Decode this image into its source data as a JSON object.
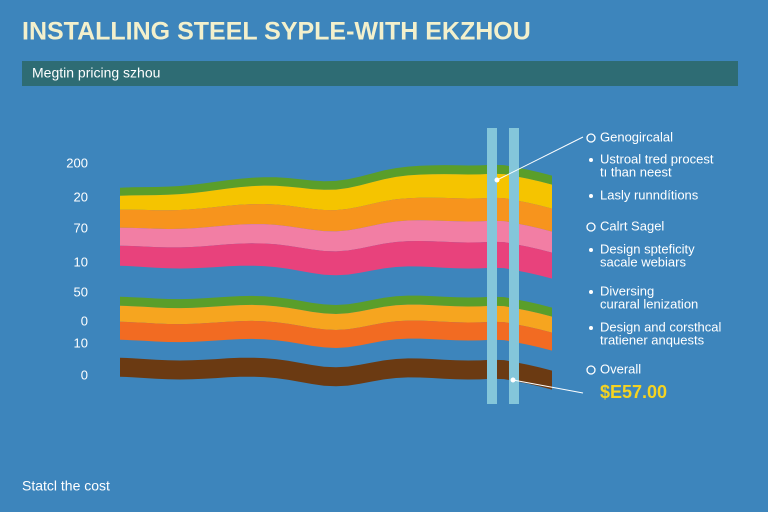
{
  "title": "INSTALLING STEEL SYPLE-WITH EKZHOU",
  "subtitle": "Megtin pricing szhou",
  "axis_labels": [
    "200",
    "20",
    "70",
    "10",
    "50",
    "0",
    "10",
    "0"
  ],
  "legend": [
    {
      "lines": [
        "Genogircalal"
      ],
      "bullet": "circle"
    },
    {
      "lines": [
        "Ustroal tred procest",
        "tı than neest"
      ],
      "bullet": "dot"
    },
    {
      "lines": [
        "Lasly runndítions"
      ],
      "bullet": "dot"
    },
    {
      "lines": [
        "Calrt Sagel"
      ],
      "bullet": "circle"
    },
    {
      "lines": [
        "Design spteficity",
        "sacale webiars"
      ],
      "bullet": "dot"
    },
    {
      "lines": [
        "Diversing",
        "curaral lenization"
      ],
      "bullet": "dot"
    },
    {
      "lines": [
        "Design and corsthcal",
        "tratiener anquests"
      ],
      "bullet": "dot"
    },
    {
      "lines": [
        "Overall"
      ],
      "bullet": "circle"
    }
  ],
  "total": "$E57.00",
  "footer": "Statcl the cost"
}
